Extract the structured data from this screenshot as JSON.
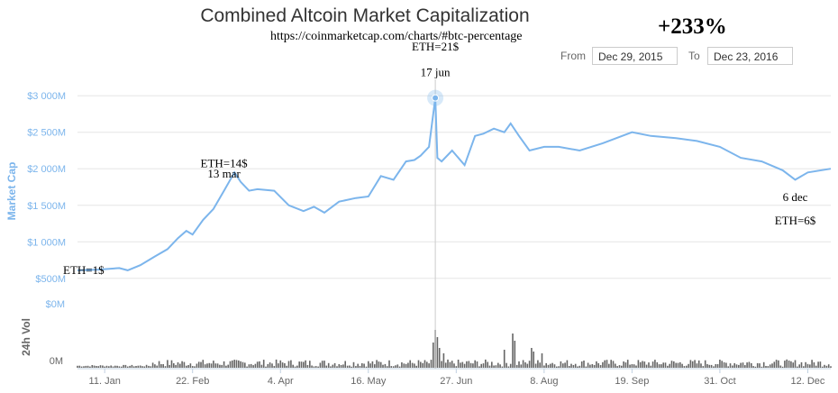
{
  "header": {
    "title": "Combined Altcoin Market Capitalization",
    "subtitle": "https://coinmarketcap.com/charts/#btc-percentage",
    "change": "+233%"
  },
  "range": {
    "from_label": "From",
    "from_value": "Dec 29, 2015",
    "to_label": "To",
    "to_value": "Dec 23, 2016"
  },
  "chart_data": {
    "type": "line",
    "title": "Combined Altcoin Market Capitalization",
    "ylabel": "Market Cap",
    "volume_label": "24h Vol",
    "x_ticks": [
      "11. Jan",
      "22. Feb",
      "4. Apr",
      "16. May",
      "27. Jun",
      "8. Aug",
      "19. Sep",
      "31. Oct",
      "12. Dec"
    ],
    "y_ticks": [
      "$500M",
      "$1 000M",
      "$1 500M",
      "$2 000M",
      "$2 500M",
      "$3 000M"
    ],
    "vol_ticks": [
      "$0M",
      "0M"
    ],
    "ylim_millions": [
      300,
      3200
    ],
    "xlim": [
      "2015-12-29",
      "2016-12-23"
    ],
    "series": [
      {
        "x": [
          "2015-12-29",
          "2016-01-08",
          "2016-01-18",
          "2016-01-22",
          "2016-01-28",
          "2016-02-04",
          "2016-02-10",
          "2016-02-15",
          "2016-02-19",
          "2016-02-22",
          "2016-02-27",
          "2016-03-03",
          "2016-03-08",
          "2016-03-13",
          "2016-03-16",
          "2016-03-20",
          "2016-03-24",
          "2016-04-01",
          "2016-04-08",
          "2016-04-15",
          "2016-04-20",
          "2016-04-25",
          "2016-05-02",
          "2016-05-10",
          "2016-05-16",
          "2016-05-22",
          "2016-05-28",
          "2016-06-03",
          "2016-06-07",
          "2016-06-10",
          "2016-06-14",
          "2016-06-17",
          "2016-06-18",
          "2016-06-20",
          "2016-06-25",
          "2016-07-01",
          "2016-07-06",
          "2016-07-10",
          "2016-07-15",
          "2016-07-20",
          "2016-07-23",
          "2016-07-27",
          "2016-08-01",
          "2016-08-08",
          "2016-08-15",
          "2016-08-25",
          "2016-09-05",
          "2016-09-19",
          "2016-09-28",
          "2016-10-10",
          "2016-10-20",
          "2016-10-31",
          "2016-11-10",
          "2016-11-20",
          "2016-11-30",
          "2016-12-06",
          "2016-12-12",
          "2016-12-23"
        ],
        "values": [
          610,
          620,
          640,
          610,
          680,
          800,
          900,
          1050,
          1150,
          1100,
          1300,
          1450,
          1700,
          1950,
          1820,
          1700,
          1720,
          1700,
          1500,
          1420,
          1480,
          1400,
          1550,
          1600,
          1620,
          1900,
          1850,
          2100,
          2120,
          2180,
          2300,
          2970,
          2150,
          2100,
          2250,
          2050,
          2450,
          2480,
          2550,
          2500,
          2620,
          2450,
          2250,
          2300,
          2300,
          2250,
          2350,
          2500,
          2450,
          2420,
          2380,
          2300,
          2150,
          2100,
          1980,
          1850,
          1950,
          2000
        ]
      }
    ],
    "highlight": {
      "x": "2016-06-17",
      "value": 2970
    },
    "annotations": [
      {
        "text": "ETH=1$",
        "x": "2015-12-30",
        "value": 560
      },
      {
        "text": "ETH=14$",
        "x": "2016-03-08",
        "value": 2020
      },
      {
        "text": "13 mar",
        "x": "2016-03-08",
        "value": 1880
      },
      {
        "text": "ETH=21$",
        "x": "2016-06-17",
        "value": 3620
      },
      {
        "text": "17 jun",
        "x": "2016-06-17",
        "value": 3270
      },
      {
        "text": "6 dec",
        "x": "2016-12-06",
        "value": 1560
      },
      {
        "text": "ETH=6$",
        "x": "2016-12-06",
        "value": 1240
      }
    ],
    "colors": {
      "line": "#7cb5ec",
      "axis_text": "#7cb5ec",
      "volume": "#666666",
      "grid": "#e6e6e6"
    }
  }
}
